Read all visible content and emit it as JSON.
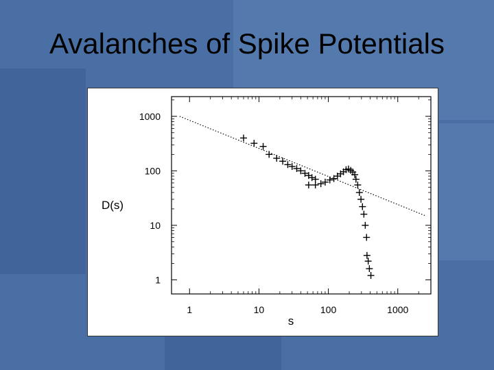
{
  "slide": {
    "title": "Avalanches of Spike Potentials"
  },
  "colors": {
    "background": "#4a6fa5",
    "background_dark": "#41649a",
    "background_light": "#5479ad",
    "plot_bg": "#ffffff",
    "marker": "#000000"
  },
  "chart_data": {
    "type": "scatter",
    "title": "",
    "xlabel": "s",
    "ylabel": "D(s)",
    "xscale": "log",
    "yscale": "log",
    "xlim": [
      0.55,
      3000
    ],
    "ylim": [
      0.55,
      2300
    ],
    "grid": false,
    "x_ticks": [
      {
        "value": 1,
        "label": "1"
      },
      {
        "value": 10,
        "label": "10"
      },
      {
        "value": 100,
        "label": "100"
      },
      {
        "value": 1000,
        "label": "1000"
      }
    ],
    "y_ticks": [
      {
        "value": 1,
        "label": "1"
      },
      {
        "value": 10,
        "label": "10"
      },
      {
        "value": 100,
        "label": "100"
      },
      {
        "value": 1000,
        "label": "1000"
      }
    ],
    "series": [
      {
        "type": "line",
        "style": "dotted",
        "points": [
          [
            0.72,
            1000
          ],
          [
            2500,
            15
          ]
        ]
      },
      {
        "type": "scatter",
        "marker": "plus",
        "points": [
          [
            6,
            400
          ],
          [
            8.5,
            320
          ],
          [
            11.5,
            280
          ],
          [
            14,
            200
          ],
          [
            18,
            170
          ],
          [
            22,
            150
          ],
          [
            26,
            130
          ],
          [
            30,
            120
          ],
          [
            35,
            110
          ],
          [
            40,
            100
          ],
          [
            46,
            90
          ],
          [
            52,
            82
          ],
          [
            58,
            75
          ],
          [
            65,
            70
          ],
          [
            52,
            55
          ],
          [
            65,
            55
          ],
          [
            78,
            58
          ],
          [
            90,
            62
          ],
          [
            105,
            68
          ],
          [
            120,
            72
          ],
          [
            135,
            80
          ],
          [
            150,
            88
          ],
          [
            165,
            96
          ],
          [
            180,
            105
          ],
          [
            195,
            108
          ],
          [
            210,
            102
          ],
          [
            225,
            95
          ],
          [
            240,
            85
          ],
          [
            250,
            70
          ],
          [
            265,
            55
          ],
          [
            280,
            40
          ],
          [
            295,
            30
          ],
          [
            310,
            22
          ],
          [
            325,
            16
          ],
          [
            340,
            10
          ],
          [
            355,
            6
          ],
          [
            360,
            2.8
          ],
          [
            375,
            2.2
          ],
          [
            390,
            1.6
          ],
          [
            410,
            1.2
          ]
        ]
      }
    ]
  }
}
